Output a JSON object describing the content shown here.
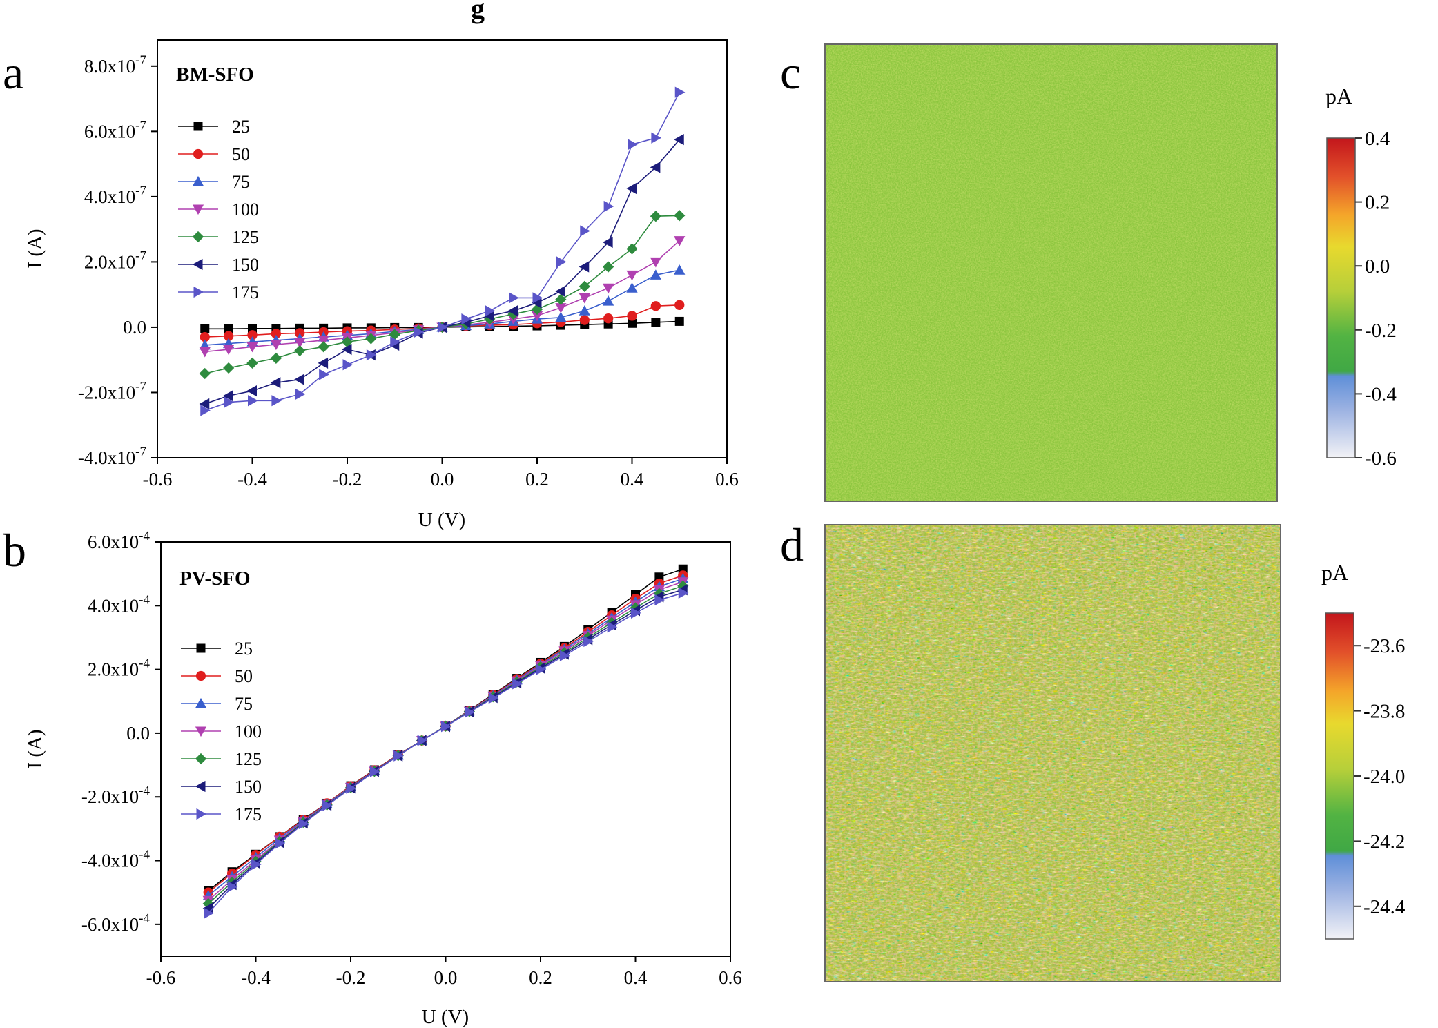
{
  "header_glyph": "g",
  "colors": {
    "25": "#000000",
    "50": "#e01e1e",
    "75": "#3a5fcd",
    "100": "#b040b0",
    "125": "#2e8b3e",
    "150": "#1c1c7a",
    "175": "#5a55c8"
  },
  "markers": {
    "25": "square",
    "50": "circle",
    "75": "triangle-up",
    "100": "triangle-down",
    "125": "diamond",
    "150": "triangle-left",
    "175": "triangle-right"
  },
  "chart_data": [
    {
      "panel_label": "a",
      "type": "line",
      "title": "BM-SFO",
      "xlabel": "U (V)",
      "ylabel": "I (A)",
      "xlim": [
        -0.6,
        0.6
      ],
      "ylim": [
        -4e-07,
        8.8e-07
      ],
      "xticks": [
        -0.6,
        -0.4,
        -0.2,
        0.0,
        0.2,
        0.4,
        0.6
      ],
      "xtick_labels": [
        "-0.6",
        "-0.4",
        "-0.2",
        "0.0",
        "0.2",
        "0.4",
        "0.6"
      ],
      "yticks": [
        -4e-07,
        -2e-07,
        0.0,
        2e-07,
        4e-07,
        6e-07,
        8e-07
      ],
      "ytick_labels": [
        {
          "base": "-4.0x10",
          "exp": "-7"
        },
        {
          "base": "-2.0x10",
          "exp": "-7"
        },
        {
          "base": "0.0",
          "exp": ""
        },
        {
          "base": "2.0x10",
          "exp": "-7"
        },
        {
          "base": "4.0x10",
          "exp": "-7"
        },
        {
          "base": "6.0x10",
          "exp": "-7"
        },
        {
          "base": "8.0x10",
          "exp": "-7"
        }
      ],
      "legend_position": "upper-left",
      "x": [
        -0.5,
        -0.45,
        -0.4,
        -0.35,
        -0.3,
        -0.25,
        -0.2,
        -0.15,
        -0.1,
        -0.05,
        0.0,
        0.05,
        0.1,
        0.15,
        0.2,
        0.25,
        0.3,
        0.35,
        0.4,
        0.45,
        0.5
      ],
      "series": [
        {
          "name": "25",
          "values": [
            -5e-09,
            -5e-09,
            -4e-09,
            -4e-09,
            -3e-09,
            -3e-09,
            -2e-09,
            -2e-09,
            -1e-09,
            -1e-09,
            0.0,
            1e-09,
            2e-09,
            3e-09,
            4e-09,
            6e-09,
            8e-09,
            1e-08,
            1.2e-08,
            1.5e-08,
            1.8e-08
          ]
        },
        {
          "name": "50",
          "values": [
            -3e-08,
            -2.7e-08,
            -2.4e-08,
            -2e-08,
            -1.8e-08,
            -1.5e-08,
            -1.2e-08,
            -1e-08,
            -7e-09,
            -4e-09,
            0.0,
            4e-09,
            6e-09,
            8e-09,
            1.2e-08,
            1.6e-08,
            2.2e-08,
            2.7e-08,
            3.5e-08,
            6.5e-08,
            6.8e-08
          ]
        },
        {
          "name": "75",
          "values": [
            -5.5e-08,
            -5e-08,
            -4.5e-08,
            -4e-08,
            -3.5e-08,
            -3e-08,
            -2.5e-08,
            -2e-08,
            -1.3e-08,
            -7e-09,
            0.0,
            5e-09,
            1e-08,
            1.8e-08,
            2.5e-08,
            3e-08,
            5e-08,
            8e-08,
            1.2e-07,
            1.6e-07,
            1.75e-07
          ]
        },
        {
          "name": "100",
          "values": [
            -7.5e-08,
            -6.8e-08,
            -6e-08,
            -5.3e-08,
            -4.7e-08,
            -4e-08,
            -3.3e-08,
            -2.5e-08,
            -1.7e-08,
            -8e-09,
            0.0,
            7e-09,
            1.5e-08,
            2.5e-08,
            3.5e-08,
            6e-08,
            9e-08,
            1.2e-07,
            1.6e-07,
            2e-07,
            2.65e-07
          ]
        },
        {
          "name": "125",
          "values": [
            -1.42e-07,
            -1.25e-07,
            -1.1e-07,
            -9.5e-08,
            -7.2e-08,
            -6e-08,
            -4.5e-08,
            -3.5e-08,
            -2.2e-08,
            -1e-08,
            0.0,
            1e-08,
            2.5e-08,
            4e-08,
            5.5e-08,
            8.5e-08,
            1.25e-07,
            1.85e-07,
            2.4e-07,
            3.4e-07,
            3.42e-07
          ]
        },
        {
          "name": "150",
          "values": [
            -2.35e-07,
            -2.1e-07,
            -1.95e-07,
            -1.7e-07,
            -1.6e-07,
            -1.1e-07,
            -6.8e-08,
            -8.5e-08,
            -5.5e-08,
            -1.8e-08,
            0.0,
            1.5e-08,
            3.5e-08,
            5e-08,
            7.5e-08,
            1.1e-07,
            1.85e-07,
            2.6e-07,
            4.25e-07,
            4.9e-07,
            5.75e-07
          ]
        },
        {
          "name": "175",
          "values": [
            -2.55e-07,
            -2.3e-07,
            -2.25e-07,
            -2.25e-07,
            -2.05e-07,
            -1.45e-07,
            -1.15e-07,
            -8.5e-08,
            -4.5e-08,
            -1.5e-08,
            0.0,
            2.5e-08,
            5e-08,
            9e-08,
            9e-08,
            2e-07,
            2.95e-07,
            3.7e-07,
            5.6e-07,
            5.8e-07,
            7.2e-07
          ]
        }
      ]
    },
    {
      "panel_label": "b",
      "type": "line",
      "title": "PV-SFO",
      "xlabel": "U (V)",
      "ylabel": "I (A)",
      "xlim": [
        -0.6,
        0.6
      ],
      "ylim": [
        -0.0007,
        0.0006
      ],
      "xticks": [
        -0.6,
        -0.4,
        -0.2,
        0.0,
        0.2,
        0.4,
        0.6
      ],
      "xtick_labels": [
        "-0.6",
        "-0.4",
        "-0.2",
        "0.0",
        "0.2",
        "0.4",
        "0.6"
      ],
      "yticks": [
        -0.0006,
        -0.0004,
        -0.0002,
        0.0,
        0.0002,
        0.0004,
        0.0006
      ],
      "ytick_labels": [
        {
          "base": "-6.0x10",
          "exp": "-4"
        },
        {
          "base": "-4.0x10",
          "exp": "-4"
        },
        {
          "base": "-2.0x10",
          "exp": "-4"
        },
        {
          "base": "0.0",
          "exp": ""
        },
        {
          "base": "2.0x10",
          "exp": "-4"
        },
        {
          "base": "4.0x10",
          "exp": "-4"
        },
        {
          "base": "6.0x10",
          "exp": "-4"
        }
      ],
      "legend_position": "upper-left",
      "x": [
        -0.5,
        -0.45,
        -0.4,
        -0.35,
        -0.3,
        -0.25,
        -0.2,
        -0.15,
        -0.1,
        -0.05,
        0.0,
        0.05,
        0.1,
        0.15,
        0.2,
        0.25,
        0.3,
        0.35,
        0.4,
        0.45,
        0.5
      ],
      "series": [
        {
          "name": "25",
          "values": [
            -0.000495,
            -0.000435,
            -0.00038,
            -0.000325,
            -0.00027,
            -0.00022,
            -0.000165,
            -0.000115,
            -6.8e-05,
            -2.3e-05,
            2.2e-05,
            7.2e-05,
            0.000122,
            0.000172,
            0.000222,
            0.000272,
            0.000325,
            0.00038,
            0.000435,
            0.00049,
            0.000515
          ]
        },
        {
          "name": "50",
          "values": [
            -0.0005,
            -0.00044,
            -0.000382,
            -0.000325,
            -0.000272,
            -0.00022,
            -0.000166,
            -0.000116,
            -6.8e-05,
            -2.3e-05,
            2.2e-05,
            7.1e-05,
            0.00012,
            0.00017,
            0.000218,
            0.000267,
            0.000318,
            0.00037,
            0.000422,
            0.00047,
            0.000495
          ]
        },
        {
          "name": "75",
          "values": [
            -0.00051,
            -0.00045,
            -0.00039,
            -0.00033,
            -0.000275,
            -0.000222,
            -0.000168,
            -0.000118,
            -6.9e-05,
            -2.3e-05,
            2.2e-05,
            7e-05,
            0.000118,
            0.000167,
            0.000215,
            0.000263,
            0.000312,
            0.000362,
            0.000412,
            0.00046,
            0.000485
          ]
        },
        {
          "name": "100",
          "values": [
            -0.000525,
            -0.00046,
            -0.000398,
            -0.000336,
            -0.000278,
            -0.000224,
            -0.00017,
            -0.000119,
            -7e-05,
            -2.3e-05,
            2.2e-05,
            6.9e-05,
            0.000116,
            0.000164,
            0.000212,
            0.000258,
            0.000306,
            0.000355,
            0.000403,
            0.00045,
            0.000475
          ]
        },
        {
          "name": "125",
          "values": [
            -0.000535,
            -0.000468,
            -0.000403,
            -0.00034,
            -0.00028,
            -0.000225,
            -0.000171,
            -0.00012,
            -7e-05,
            -2.3e-05,
            2.2e-05,
            6.8e-05,
            0.000114,
            0.000161,
            0.000208,
            0.000253,
            0.0003,
            0.000347,
            0.000393,
            0.000438,
            0.000462
          ]
        },
        {
          "name": "150",
          "values": [
            -0.00055,
            -0.000475,
            -0.000408,
            -0.000343,
            -0.000282,
            -0.000226,
            -0.000172,
            -0.00012,
            -7.1e-05,
            -2.3e-05,
            2.1e-05,
            6.7e-05,
            0.000112,
            0.000158,
            0.000204,
            0.000248,
            0.000294,
            0.00034,
            0.000385,
            0.000428,
            0.00045
          ]
        },
        {
          "name": "175",
          "values": [
            -0.000565,
            -0.000482,
            -0.000412,
            -0.000346,
            -0.000284,
            -0.000227,
            -0.000173,
            -0.000121,
            -7.1e-05,
            -2.3e-05,
            2.1e-05,
            6.6e-05,
            0.00011,
            0.000155,
            0.0002,
            0.000243,
            0.000288,
            0.000333,
            0.000377,
            0.000418,
            0.00044
          ]
        }
      ]
    },
    {
      "panel_label": "c",
      "type": "heatmap",
      "colorbar_unit": "pA",
      "colorbar_range": [
        -0.6,
        0.4
      ],
      "colorbar_ticks": [
        "0.4",
        "0.2",
        "0.0",
        "-0.2",
        "-0.4",
        "-0.6"
      ],
      "dominant_color": "#8cc63e",
      "noise_level": "low"
    },
    {
      "panel_label": "d",
      "type": "heatmap",
      "colorbar_unit": "pA",
      "colorbar_range": [
        -24.5,
        -23.5
      ],
      "colorbar_ticks": [
        "-23.6",
        "-23.8",
        "-24.0",
        "-24.2",
        "-24.4"
      ],
      "dominant_color": "#a6bf46",
      "noise_level": "high"
    }
  ]
}
